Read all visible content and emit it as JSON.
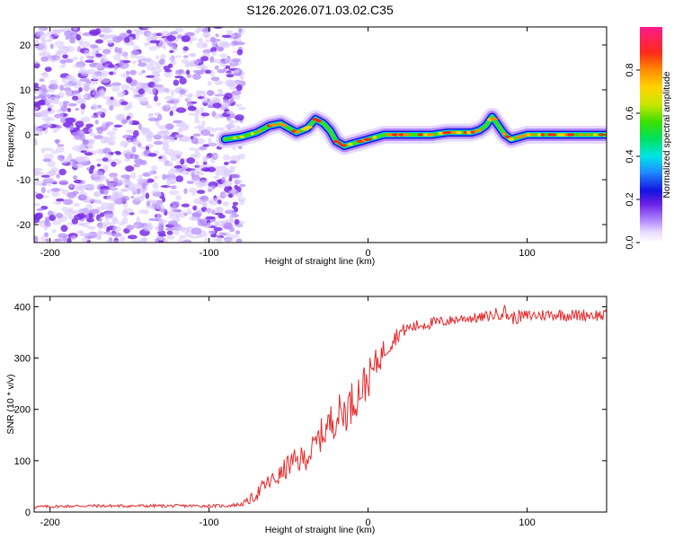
{
  "title": "S126.2026.071.03.02.C35",
  "colors": {
    "snr_line": "#e8282a",
    "ridge_low": "#1414e0",
    "noise": "#8a2be2",
    "frame": "#000000"
  },
  "chart_data": [
    {
      "type": "heatmap",
      "title": "S126.2026.071.03.02.C35",
      "xlabel": "Height of straight line (km)",
      "ylabel": "Frequency (Hz)",
      "xlim": [
        -210,
        150
      ],
      "ylim": [
        -24,
        24
      ],
      "xticks": [
        -200,
        -100,
        0,
        100
      ],
      "yticks": [
        -20,
        -10,
        0,
        10,
        20
      ],
      "colorbar": {
        "label": "Normalized spectral amplitude",
        "range": [
          0,
          1
        ],
        "ticks": [
          "0.0",
          "0.2",
          "0.4",
          "0.6",
          "0.8"
        ],
        "tick_values": [
          0.0,
          0.2,
          0.4,
          0.6,
          0.8
        ]
      },
      "noise_region_x": [
        -210,
        -85
      ],
      "ridge_x": [
        -90,
        -80,
        -70,
        -62,
        -55,
        -45,
        -38,
        -33,
        -28,
        -24,
        -20,
        -15,
        -10,
        -5,
        0,
        5,
        10,
        20,
        30,
        40,
        50,
        60,
        65,
        70,
        74,
        78,
        82,
        86,
        90,
        95,
        100,
        110,
        120,
        130,
        140,
        150
      ],
      "ridge_y": [
        -1,
        -0.5,
        0.5,
        2,
        2.5,
        0.5,
        1.5,
        3.5,
        2.5,
        1,
        -1.5,
        -2.5,
        -2,
        -1.5,
        -1,
        -0.5,
        0,
        0,
        0,
        0,
        0.5,
        0.5,
        0.5,
        1,
        2,
        4,
        2,
        0,
        -1,
        -0.5,
        0,
        0,
        0,
        0,
        0,
        0
      ]
    },
    {
      "type": "line",
      "xlabel": "Height of straight line (km)",
      "ylabel": "SNR (10 * v/v)",
      "xlim": [
        -210,
        150
      ],
      "ylim": [
        0,
        420
      ],
      "xticks": [
        -200,
        -100,
        0,
        100
      ],
      "yticks": [
        0,
        100,
        200,
        300,
        400
      ],
      "series": [
        {
          "name": "SNR",
          "x": [
            -210,
            -180,
            -150,
            -120,
            -90,
            -80,
            -75,
            -70,
            -65,
            -60,
            -55,
            -50,
            -45,
            -40,
            -35,
            -30,
            -25,
            -20,
            -15,
            -10,
            -5,
            0,
            5,
            10,
            15,
            20,
            25,
            30,
            35,
            40,
            50,
            60,
            70,
            80,
            85,
            90,
            100,
            110,
            120,
            130,
            140,
            150
          ],
          "y": [
            10,
            12,
            12,
            12,
            12,
            15,
            22,
            35,
            52,
            62,
            72,
            92,
            98,
            105,
            120,
            148,
            168,
            188,
            195,
            215,
            238,
            258,
            288,
            315,
            335,
            350,
            358,
            362,
            366,
            368,
            372,
            378,
            378,
            385,
            392,
            378,
            382,
            384,
            385,
            383,
            385,
            382
          ]
        }
      ],
      "noise_amplitude": [
        3,
        3,
        3,
        3,
        3,
        4,
        8,
        14,
        16,
        18,
        20,
        24,
        26,
        26,
        28,
        32,
        38,
        40,
        42,
        42,
        42,
        38,
        30,
        24,
        20,
        14,
        12,
        12,
        12,
        12,
        10,
        10,
        10,
        12,
        16,
        14,
        12,
        12,
        12,
        12,
        12,
        12
      ]
    }
  ]
}
